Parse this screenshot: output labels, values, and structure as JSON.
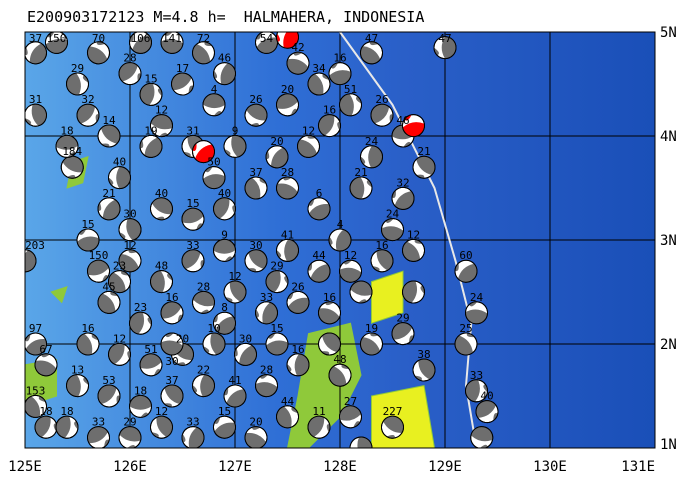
{
  "title": "E200903172123 M=4.8 h=  HALMAHERA, INDONESIA",
  "map": {
    "lon_range": [
      125,
      131
    ],
    "lat_range": [
      1,
      5
    ],
    "x_ticks": [
      "125E",
      "126E",
      "127E",
      "128E",
      "129E",
      "130E",
      "131E"
    ],
    "y_ticks": [
      "1N",
      "2N",
      "3N",
      "4N",
      "5N"
    ],
    "colors": {
      "deep": "#1a4fb8",
      "mid": "#2f6fd6",
      "shallow": "#5aa6e8",
      "land_green": "#8fc93a",
      "land_yellow": "#e8f020",
      "trench": "#e8e8e8",
      "mech_dark": "#6e6e6e",
      "highlight": "#ff0000"
    }
  },
  "land": [
    [
      [
        125.45,
        3.75
      ],
      [
        125.6,
        3.8
      ],
      [
        125.55,
        3.55
      ],
      [
        125.4,
        3.5
      ]
    ],
    [
      [
        125.25,
        2.5
      ],
      [
        125.4,
        2.55
      ],
      [
        125.35,
        2.4
      ]
    ],
    [
      [
        125.0,
        1.8
      ],
      [
        125.3,
        1.85
      ],
      [
        125.3,
        1.5
      ],
      [
        125.0,
        1.4
      ]
    ],
    [
      [
        127.7,
        2.1
      ],
      [
        128.1,
        2.2
      ],
      [
        128.2,
        1.7
      ],
      [
        128.0,
        1.3
      ],
      [
        127.7,
        1.0
      ],
      [
        127.5,
        1.0
      ],
      [
        127.6,
        1.5
      ]
    ],
    [
      [
        128.3,
        2.6
      ],
      [
        128.6,
        2.7
      ],
      [
        128.6,
        2.3
      ],
      [
        128.3,
        2.2
      ]
    ],
    [
      [
        128.3,
        1.5
      ],
      [
        128.8,
        1.6
      ],
      [
        128.9,
        1.0
      ],
      [
        128.3,
        1.0
      ]
    ]
  ],
  "trench": [
    [
      128.0,
      5.0
    ],
    [
      128.5,
      4.3
    ],
    [
      128.9,
      3.5
    ],
    [
      129.1,
      2.8
    ],
    [
      129.25,
      2.2
    ],
    [
      129.2,
      1.6
    ],
    [
      129.3,
      1.0
    ]
  ],
  "events": [
    [
      129.0,
      4.85,
      "47"
    ],
    [
      129.2,
      2.7,
      "60"
    ],
    [
      129.3,
      2.3,
      "24"
    ],
    [
      129.2,
      2.0,
      "25"
    ],
    [
      129.3,
      1.55,
      "33"
    ],
    [
      129.4,
      1.35,
      "40"
    ],
    [
      129.35,
      1.1,
      ""
    ],
    [
      128.8,
      1.75,
      "38"
    ],
    [
      125.0,
      2.8,
      "203"
    ],
    [
      125.1,
      2.0,
      "97"
    ],
    [
      125.2,
      1.8,
      "67"
    ],
    [
      125.1,
      1.4,
      "153"
    ],
    [
      125.2,
      1.2,
      "18"
    ],
    [
      125.7,
      2.7,
      "150"
    ],
    [
      125.45,
      3.7,
      "184"
    ],
    [
      125.1,
      4.2,
      "31"
    ],
    [
      125.1,
      4.8,
      "37"
    ],
    [
      125.3,
      4.9,
      "150"
    ],
    [
      125.7,
      4.8,
      "70"
    ],
    [
      125.5,
      4.5,
      "29"
    ],
    [
      125.6,
      4.2,
      "32"
    ],
    [
      125.4,
      3.9,
      "18"
    ],
    [
      125.8,
      4.0,
      "14"
    ],
    [
      125.9,
      3.6,
      "40"
    ],
    [
      126.1,
      4.9,
      "106"
    ],
    [
      126.4,
      4.9,
      "141"
    ],
    [
      126.7,
      4.8,
      "72"
    ],
    [
      126.2,
      4.4,
      "15"
    ],
    [
      126.5,
      4.5,
      "17"
    ],
    [
      126.3,
      4.1,
      "12"
    ],
    [
      126.6,
      3.9,
      "31"
    ],
    [
      126.9,
      4.6,
      "46"
    ],
    [
      127.3,
      4.9,
      "54"
    ],
    [
      127.6,
      4.7,
      "42"
    ],
    [
      127.8,
      4.5,
      "34"
    ],
    [
      127.9,
      4.1,
      "16"
    ],
    [
      127.5,
      4.3,
      "20"
    ],
    [
      127.2,
      4.2,
      "26"
    ],
    [
      127.0,
      3.9,
      "9"
    ],
    [
      127.4,
      3.8,
      "20"
    ],
    [
      128.0,
      4.6,
      "16"
    ],
    [
      128.3,
      4.8,
      "47"
    ],
    [
      128.1,
      4.3,
      "51"
    ],
    [
      128.4,
      4.2,
      "26"
    ],
    [
      128.6,
      4.0,
      "46"
    ],
    [
      128.8,
      3.7,
      "21"
    ],
    [
      128.3,
      3.8,
      "24"
    ],
    [
      128.6,
      3.4,
      "32"
    ],
    [
      128.5,
      3.1,
      "24"
    ],
    [
      128.7,
      2.9,
      "12"
    ],
    [
      128.7,
      2.5,
      ""
    ],
    [
      128.6,
      2.1,
      "29"
    ],
    [
      128.2,
      2.5,
      ""
    ],
    [
      128.4,
      2.8,
      "16"
    ],
    [
      128.0,
      3.0,
      "4"
    ],
    [
      127.8,
      3.3,
      "6"
    ],
    [
      127.5,
      3.5,
      "28"
    ],
    [
      127.2,
      3.5,
      "37"
    ],
    [
      126.9,
      3.3,
      "40"
    ],
    [
      126.6,
      3.2,
      "15"
    ],
    [
      126.3,
      3.3,
      "40"
    ],
    [
      126.0,
      3.1,
      "30"
    ],
    [
      125.8,
      3.3,
      "21"
    ],
    [
      125.6,
      3.0,
      "15"
    ],
    [
      126.0,
      2.8,
      "12"
    ],
    [
      126.3,
      2.6,
      "48"
    ],
    [
      126.6,
      2.8,
      "33"
    ],
    [
      126.9,
      2.9,
      "9"
    ],
    [
      127.2,
      2.8,
      "30"
    ],
    [
      127.5,
      2.9,
      "41"
    ],
    [
      127.8,
      2.7,
      "44"
    ],
    [
      128.1,
      2.7,
      "12"
    ],
    [
      125.8,
      2.4,
      "45"
    ],
    [
      126.1,
      2.2,
      "23"
    ],
    [
      126.4,
      2.3,
      "16"
    ],
    [
      126.7,
      2.4,
      "28"
    ],
    [
      127.0,
      2.5,
      "12"
    ],
    [
      127.3,
      2.3,
      "33"
    ],
    [
      127.6,
      2.4,
      "26"
    ],
    [
      127.9,
      2.3,
      "16"
    ],
    [
      125.6,
      2.0,
      "16"
    ],
    [
      125.9,
      1.9,
      "12"
    ],
    [
      126.2,
      1.8,
      "51"
    ],
    [
      126.5,
      1.9,
      "20"
    ],
    [
      126.8,
      2.0,
      "10"
    ],
    [
      127.1,
      1.9,
      "30"
    ],
    [
      127.4,
      2.0,
      "15"
    ],
    [
      128.3,
      2.0,
      "19"
    ],
    [
      125.5,
      1.6,
      "13"
    ],
    [
      125.8,
      1.5,
      "53"
    ],
    [
      126.1,
      1.4,
      "18"
    ],
    [
      126.4,
      1.5,
      "37"
    ],
    [
      126.7,
      1.6,
      "22"
    ],
    [
      127.0,
      1.5,
      "41"
    ],
    [
      127.3,
      1.6,
      "28"
    ],
    [
      128.0,
      1.7,
      "48"
    ],
    [
      125.4,
      1.2,
      "18"
    ],
    [
      125.7,
      1.1,
      "33"
    ],
    [
      126.0,
      1.1,
      "29"
    ],
    [
      126.3,
      1.2,
      "12"
    ],
    [
      126.6,
      1.1,
      "33"
    ],
    [
      126.9,
      1.2,
      "15"
    ],
    [
      127.2,
      1.1,
      "20"
    ],
    [
      127.5,
      1.3,
      "44"
    ],
    [
      127.8,
      1.2,
      "11"
    ],
    [
      128.1,
      1.3,
      "27"
    ],
    [
      128.5,
      1.2,
      "227"
    ],
    [
      128.2,
      1.0,
      ""
    ],
    [
      126.2,
      3.9,
      "19"
    ],
    [
      126.8,
      3.6,
      "50"
    ],
    [
      127.7,
      3.9,
      "12"
    ],
    [
      128.2,
      3.5,
      "21"
    ],
    [
      126.0,
      4.6,
      "28"
    ],
    [
      126.8,
      4.3,
      "4"
    ],
    [
      127.9,
      2.0,
      ""
    ],
    [
      127.6,
      1.8,
      "16"
    ],
    [
      126.9,
      2.2,
      "8"
    ],
    [
      126.4,
      2.0,
      "30"
    ],
    [
      125.9,
      2.6,
      "23"
    ],
    [
      127.4,
      2.6,
      "29"
    ]
  ],
  "highlight_events": [
    [
      127.5,
      4.95
    ],
    [
      126.7,
      3.85
    ],
    [
      128.7,
      4.1
    ]
  ]
}
